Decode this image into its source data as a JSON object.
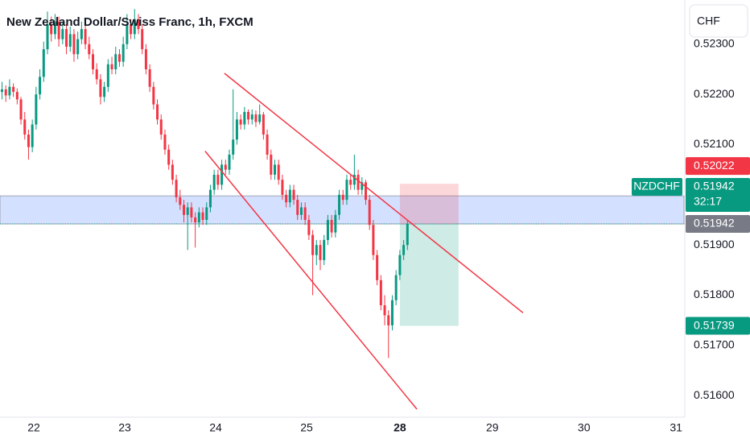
{
  "chart_data": {
    "type": "candlestick",
    "title": "New Zealand Dollar/Swiss Franc, 1h, FXCM",
    "currency": "CHF",
    "symbol": "NZDCHF",
    "countdown": "32:17",
    "xlim": [
      -0.53,
      180
    ],
    "xticks": [
      {
        "value": 8.4,
        "label": "22"
      },
      {
        "value": 32.4,
        "label": "23"
      },
      {
        "value": 56.4,
        "label": "24"
      },
      {
        "value": 80.4,
        "label": "25"
      },
      {
        "value": 105,
        "label": "28",
        "highlight": true
      },
      {
        "value": 129.4,
        "label": "29"
      },
      {
        "value": 153.6,
        "label": "30"
      },
      {
        "value": 177.9,
        "label": "31"
      }
    ],
    "ylim": [
      0.51557,
      0.52388
    ],
    "yticks": [
      {
        "value": 0.523,
        "label": "0.52300"
      },
      {
        "value": 0.522,
        "label": "0.52200"
      },
      {
        "value": 0.521,
        "label": "0.52100"
      },
      {
        "value": 0.519,
        "label": "0.51900"
      },
      {
        "value": 0.518,
        "label": "0.51800"
      },
      {
        "value": 0.517,
        "label": "0.51700"
      },
      {
        "value": 0.516,
        "label": "0.51600"
      }
    ],
    "grid": false,
    "up_color": "#089981",
    "down_color": "#f23645",
    "ohlc": [
      [
        0.52205,
        0.52225,
        0.5219,
        0.5221
      ],
      [
        0.5221,
        0.52218,
        0.52185,
        0.52198
      ],
      [
        0.52198,
        0.5223,
        0.5219,
        0.52215
      ],
      [
        0.52215,
        0.52222,
        0.52195,
        0.52205
      ],
      [
        0.52205,
        0.52212,
        0.5218,
        0.5219
      ],
      [
        0.5219,
        0.52195,
        0.5214,
        0.5215
      ],
      [
        0.5215,
        0.52165,
        0.5211,
        0.5212
      ],
      [
        0.5212,
        0.5213,
        0.5207,
        0.52095
      ],
      [
        0.52095,
        0.5215,
        0.52085,
        0.5214
      ],
      [
        0.5214,
        0.52215,
        0.5213,
        0.522
      ],
      [
        0.522,
        0.5225,
        0.5219,
        0.52235
      ],
      [
        0.52235,
        0.52305,
        0.52225,
        0.5229
      ],
      [
        0.5229,
        0.52365,
        0.5228,
        0.5234
      ],
      [
        0.5234,
        0.52355,
        0.52305,
        0.5232
      ],
      [
        0.5232,
        0.5236,
        0.5231,
        0.52345
      ],
      [
        0.52345,
        0.52355,
        0.52295,
        0.5231
      ],
      [
        0.5231,
        0.52345,
        0.523,
        0.5233
      ],
      [
        0.5233,
        0.5234,
        0.5228,
        0.52295
      ],
      [
        0.52295,
        0.52335,
        0.52285,
        0.5232
      ],
      [
        0.5232,
        0.5233,
        0.52265,
        0.5228
      ],
      [
        0.5228,
        0.52325,
        0.5227,
        0.5231
      ],
      [
        0.5231,
        0.52345,
        0.523,
        0.5233
      ],
      [
        0.5233,
        0.5234,
        0.5229,
        0.523
      ],
      [
        0.523,
        0.52315,
        0.5227,
        0.5228
      ],
      [
        0.5228,
        0.5229,
        0.5224,
        0.5225
      ],
      [
        0.5225,
        0.52262,
        0.5222,
        0.5223
      ],
      [
        0.5223,
        0.5224,
        0.5218,
        0.52195
      ],
      [
        0.52195,
        0.52225,
        0.52185,
        0.52215
      ],
      [
        0.52215,
        0.5227,
        0.52205,
        0.5226
      ],
      [
        0.5226,
        0.52275,
        0.5224,
        0.5225
      ],
      [
        0.5225,
        0.52295,
        0.5224,
        0.5228
      ],
      [
        0.5228,
        0.5229,
        0.52255,
        0.52265
      ],
      [
        0.52265,
        0.52315,
        0.52255,
        0.523
      ],
      [
        0.523,
        0.5236,
        0.5229,
        0.5234
      ],
      [
        0.5234,
        0.5235,
        0.5231,
        0.5232
      ],
      [
        0.5232,
        0.5237,
        0.5231,
        0.5235
      ],
      [
        0.5235,
        0.5236,
        0.5232,
        0.5233
      ],
      [
        0.5233,
        0.5234,
        0.5228,
        0.5229
      ],
      [
        0.5229,
        0.523,
        0.5224,
        0.5225
      ],
      [
        0.5225,
        0.5226,
        0.52205,
        0.52215
      ],
      [
        0.52215,
        0.52225,
        0.5217,
        0.5218
      ],
      [
        0.5218,
        0.5219,
        0.5214,
        0.5215
      ],
      [
        0.5215,
        0.5216,
        0.5211,
        0.5212
      ],
      [
        0.5212,
        0.5213,
        0.5208,
        0.5209
      ],
      [
        0.5209,
        0.521,
        0.5205,
        0.5206
      ],
      [
        0.5206,
        0.5207,
        0.5202,
        0.5203
      ],
      [
        0.5203,
        0.5204,
        0.51985,
        0.51995
      ],
      [
        0.51995,
        0.5201,
        0.5197,
        0.5198
      ],
      [
        0.5198,
        0.5199,
        0.51945,
        0.5196
      ],
      [
        0.5196,
        0.51985,
        0.5189,
        0.51975
      ],
      [
        0.51975,
        0.51985,
        0.51945,
        0.51955
      ],
      [
        0.51955,
        0.51965,
        0.51895,
        0.51945
      ],
      [
        0.51945,
        0.51975,
        0.51935,
        0.51965
      ],
      [
        0.51965,
        0.51975,
        0.5194,
        0.5195
      ],
      [
        0.5195,
        0.51985,
        0.5194,
        0.51975
      ],
      [
        0.51975,
        0.5202,
        0.51965,
        0.5201
      ],
      [
        0.5201,
        0.5205,
        0.52,
        0.5204
      ],
      [
        0.5204,
        0.5205,
        0.5201,
        0.5202
      ],
      [
        0.5202,
        0.5207,
        0.5201,
        0.5206
      ],
      [
        0.5206,
        0.5207,
        0.5204,
        0.5205
      ],
      [
        0.5205,
        0.5209,
        0.5204,
        0.5208
      ],
      [
        0.5208,
        0.5221,
        0.5207,
        0.5211
      ],
      [
        0.5211,
        0.52165,
        0.521,
        0.5215
      ],
      [
        0.5215,
        0.5216,
        0.5213,
        0.5214
      ],
      [
        0.5214,
        0.52175,
        0.5213,
        0.52165
      ],
      [
        0.52165,
        0.5217,
        0.5214,
        0.5215
      ],
      [
        0.5215,
        0.5217,
        0.5214,
        0.5216
      ],
      [
        0.5216,
        0.52168,
        0.52135,
        0.52145
      ],
      [
        0.52145,
        0.5218,
        0.5214,
        0.5216
      ],
      [
        0.5216,
        0.52165,
        0.5211,
        0.5212
      ],
      [
        0.5212,
        0.5213,
        0.5207,
        0.5208
      ],
      [
        0.5208,
        0.5209,
        0.5203,
        0.5204
      ],
      [
        0.5204,
        0.5207,
        0.5203,
        0.5206
      ],
      [
        0.5206,
        0.5207,
        0.5202,
        0.5203
      ],
      [
        0.5203,
        0.5204,
        0.5199,
        0.52
      ],
      [
        0.52,
        0.5201,
        0.51975,
        0.51985
      ],
      [
        0.51985,
        0.5202,
        0.51975,
        0.5201
      ],
      [
        0.5201,
        0.5202,
        0.5198,
        0.5199
      ],
      [
        0.5199,
        0.52,
        0.5195,
        0.5196
      ],
      [
        0.5196,
        0.51985,
        0.5195,
        0.51975
      ],
      [
        0.51975,
        0.51985,
        0.5194,
        0.5195
      ],
      [
        0.5195,
        0.5196,
        0.5191,
        0.5192
      ],
      [
        0.5192,
        0.5193,
        0.518,
        0.5188
      ],
      [
        0.5188,
        0.5191,
        0.5186,
        0.519
      ],
      [
        0.519,
        0.5191,
        0.5185,
        0.5187
      ],
      [
        0.5187,
        0.5192,
        0.5186,
        0.5191
      ],
      [
        0.5191,
        0.5196,
        0.519,
        0.5195
      ],
      [
        0.5195,
        0.5196,
        0.51915,
        0.51925
      ],
      [
        0.51925,
        0.5197,
        0.51915,
        0.5196
      ],
      [
        0.5196,
        0.5201,
        0.5195,
        0.52
      ],
      [
        0.52,
        0.5201,
        0.5198,
        0.5199
      ],
      [
        0.5199,
        0.5204,
        0.5198,
        0.5203
      ],
      [
        0.5203,
        0.5204,
        0.5201,
        0.5202
      ],
      [
        0.5202,
        0.5208,
        0.5201,
        0.5204
      ],
      [
        0.5204,
        0.5205,
        0.52,
        0.5201
      ],
      [
        0.5201,
        0.52035,
        0.52,
        0.52025
      ],
      [
        0.52025,
        0.5203,
        0.5198,
        0.5199
      ],
      [
        0.5199,
        0.52,
        0.5193,
        0.5194
      ],
      [
        0.5194,
        0.5195,
        0.5187,
        0.5188
      ],
      [
        0.5188,
        0.5189,
        0.5182,
        0.5183
      ],
      [
        0.5183,
        0.5184,
        0.5177,
        0.5178
      ],
      [
        0.5178,
        0.518,
        0.5174,
        0.5176
      ],
      [
        0.5176,
        0.5177,
        0.51675,
        0.5174
      ],
      [
        0.5174,
        0.518,
        0.5173,
        0.5179
      ],
      [
        0.5179,
        0.5185,
        0.5178,
        0.5184
      ],
      [
        0.5184,
        0.5189,
        0.5183,
        0.5188
      ],
      [
        0.5188,
        0.5191,
        0.5187,
        0.519
      ],
      [
        0.519,
        0.5195,
        0.5189,
        0.51942
      ]
    ],
    "last_price": 0.51942,
    "last_price_color": "#089981",
    "trendlines": [
      {
        "x": [
          58.7,
          137.5
        ],
        "y": [
          0.52242,
          0.51765
        ],
        "color": "#f23645"
      },
      {
        "x": [
          53.6,
          109.5
        ],
        "y": [
          0.52087,
          0.51573
        ],
        "color": "#f23645"
      }
    ],
    "position": {
      "x": [
        105,
        120.5
      ],
      "entry": 0.51942,
      "stop": 0.52022,
      "target": 0.51739,
      "stop_color": "#f23645",
      "target_color": "#089981"
    },
    "zone": {
      "y": [
        0.51942,
        0.51998
      ],
      "color": "#2962ff"
    }
  }
}
